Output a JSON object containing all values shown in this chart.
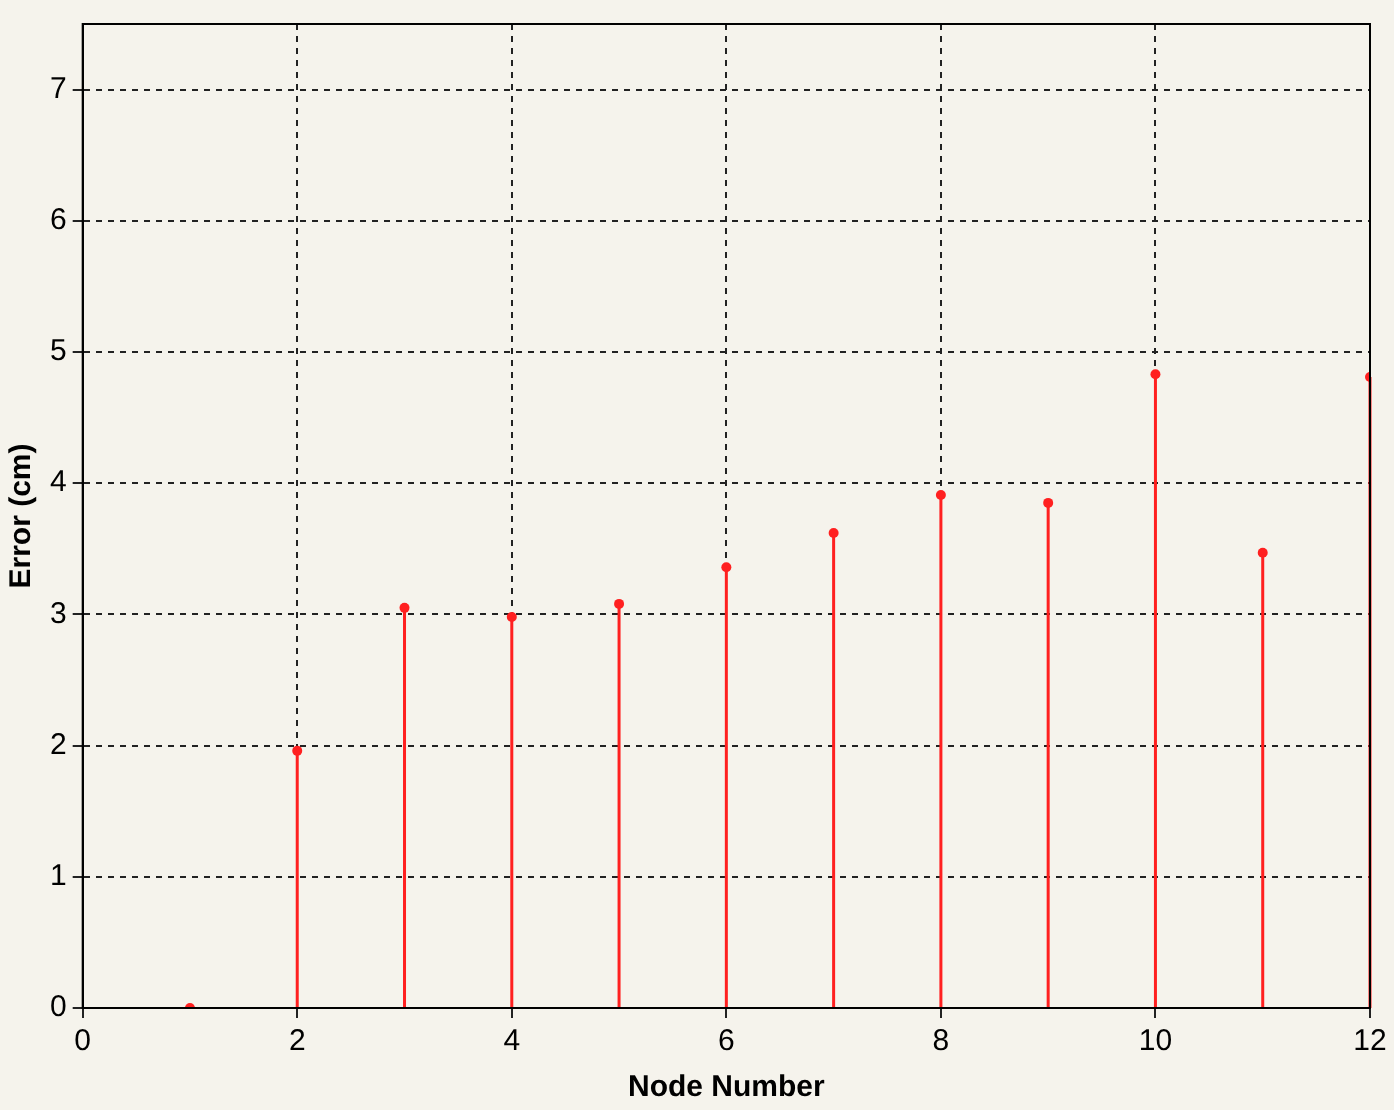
{
  "chart_data": {
    "type": "lollipop",
    "xlabel": "Node Number",
    "ylabel": "Error (cm)",
    "x": [
      1,
      2,
      3,
      4,
      5,
      6,
      7,
      8,
      9,
      10,
      11,
      12
    ],
    "series": [
      {
        "color": "#ff2020",
        "values": [
          0,
          1.96,
          3.05,
          2.98,
          3.08,
          3.36,
          3.62,
          3.91,
          3.85,
          4.83,
          3.47,
          4.81
        ]
      }
    ],
    "xlim": [
      0,
      12
    ],
    "xticks": [
      0,
      2,
      4,
      6,
      8,
      10,
      12
    ],
    "ylim": [
      0,
      7.5
    ],
    "yticks": [
      0,
      1,
      2,
      3,
      4,
      5,
      6,
      7
    ],
    "grid": true,
    "legend": false,
    "marker": "circle"
  }
}
